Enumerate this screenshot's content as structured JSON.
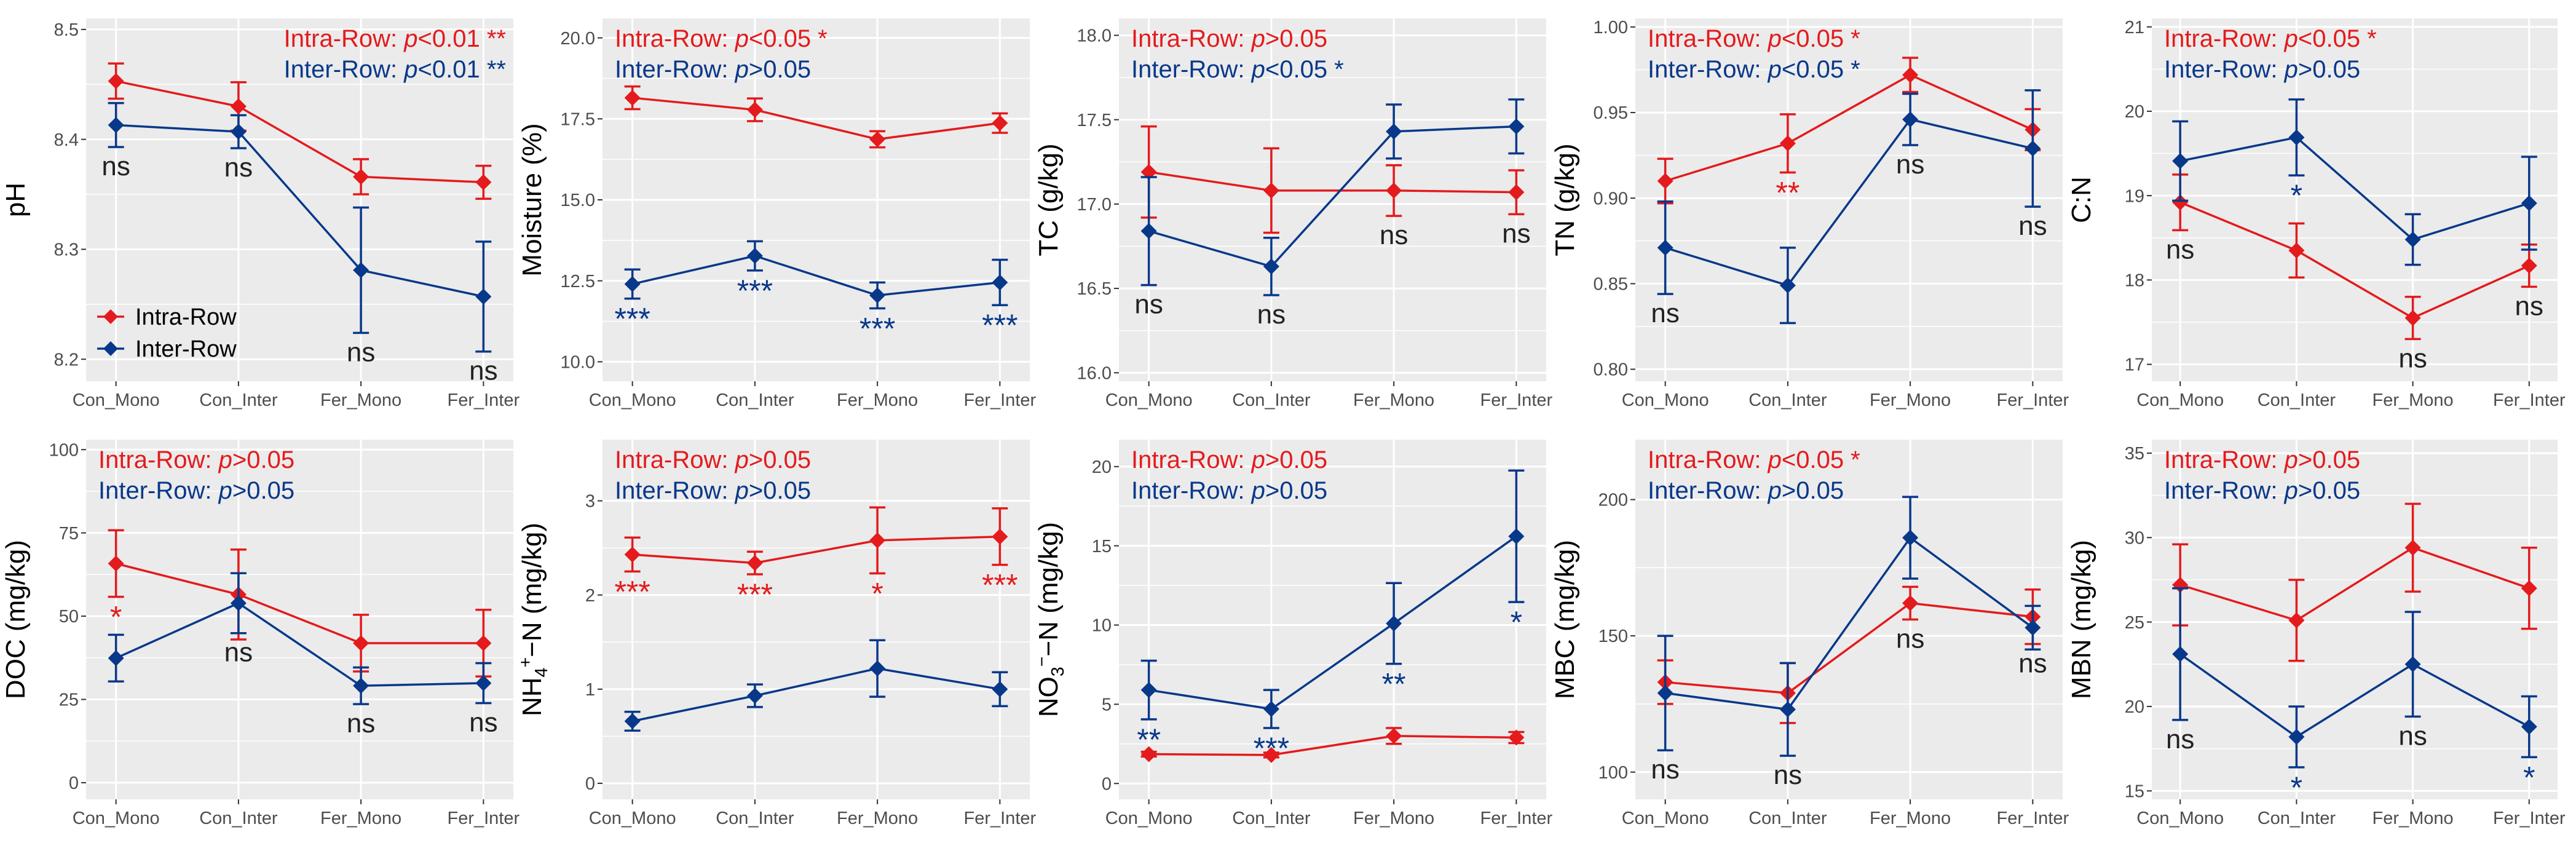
{
  "colors": {
    "intra": "#e41a1c",
    "inter": "#08388a",
    "panel_bg": "#ebebeb",
    "grid": "#ffffff",
    "axis_text": "#4d4d4d",
    "title_text": "#000000"
  },
  "legend": {
    "intra_label": "Intra-Row",
    "inter_label": "Inter-Row"
  },
  "chart_data": [
    {
      "id": "ph",
      "type": "line",
      "ylabel": "pH",
      "ylabel_html": false,
      "categories": [
        "Con_Mono",
        "Con_Inter",
        "Fer_Mono",
        "Fer_Inter"
      ],
      "ylim": [
        8.18,
        8.51
      ],
      "yticks": [
        8.2,
        8.3,
        8.4,
        8.5
      ],
      "ytick_labels": [
        "8.2",
        "8.3",
        "8.4",
        "8.5"
      ],
      "stats_align": "right",
      "stats": [
        {
          "series": "intra",
          "prefix": "Intra-Row: ",
          "p": "p",
          "suffix": "<0.01 **"
        },
        {
          "series": "inter",
          "prefix": "Inter-Row: ",
          "p": "p",
          "suffix": "<0.01 **"
        }
      ],
      "legend_shown": true,
      "series": [
        {
          "name": "Intra-Row",
          "values": [
            8.453,
            8.43,
            8.366,
            8.361
          ],
          "errors": [
            0.016,
            0.022,
            0.016,
            0.015
          ],
          "marks": [
            "",
            "",
            "",
            ""
          ]
        },
        {
          "name": "Inter-Row",
          "values": [
            8.413,
            8.407,
            8.281,
            8.257
          ],
          "errors": [
            0.02,
            0.015,
            0.057,
            0.05
          ],
          "marks": [
            "ns",
            "ns",
            "ns",
            "ns"
          ]
        }
      ]
    },
    {
      "id": "moisture",
      "type": "line",
      "ylabel": "Moisture (%)",
      "categories": [
        "Con_Mono",
        "Con_Inter",
        "Fer_Mono",
        "Fer_Inter"
      ],
      "ylim": [
        9.4,
        20.6
      ],
      "yticks": [
        10,
        12.5,
        15,
        17.5,
        20
      ],
      "ytick_labels": [
        "10.0",
        "12.5",
        "15.0",
        "17.5",
        "20.0"
      ],
      "stats_align": "left",
      "stats": [
        {
          "series": "intra",
          "prefix": "Intra-Row: ",
          "p": "p",
          "suffix": "<0.05 *"
        },
        {
          "series": "inter",
          "prefix": "Inter-Row: ",
          "p": "p",
          "suffix": ">0.05"
        }
      ],
      "series": [
        {
          "name": "Intra-Row",
          "values": [
            18.15,
            17.78,
            16.87,
            17.37
          ],
          "errors": [
            0.35,
            0.35,
            0.25,
            0.3
          ],
          "marks": [
            "",
            "",
            "",
            ""
          ]
        },
        {
          "name": "Inter-Row",
          "values": [
            12.4,
            13.27,
            12.05,
            12.45
          ],
          "errors": [
            0.45,
            0.45,
            0.4,
            0.7
          ],
          "marks": [
            "***",
            "***",
            "***",
            "***"
          ]
        }
      ]
    },
    {
      "id": "tc",
      "type": "line",
      "ylabel": "TC (g/kg)",
      "categories": [
        "Con_Mono",
        "Con_Inter",
        "Fer_Mono",
        "Fer_Inter"
      ],
      "ylim": [
        15.95,
        18.1
      ],
      "yticks": [
        16,
        16.5,
        17,
        17.5,
        18
      ],
      "ytick_labels": [
        "16.0",
        "16.5",
        "17.0",
        "17.5",
        "18.0"
      ],
      "stats_align": "left",
      "stats": [
        {
          "series": "intra",
          "prefix": "Intra-Row: ",
          "p": "p",
          "suffix": ">0.05"
        },
        {
          "series": "inter",
          "prefix": "Inter-Row: ",
          "p": "p",
          "suffix": "<0.05 *"
        }
      ],
      "series": [
        {
          "name": "Intra-Row",
          "values": [
            17.19,
            17.08,
            17.08,
            17.07
          ],
          "errors": [
            0.27,
            0.25,
            0.15,
            0.13
          ],
          "marks": [
            "",
            "",
            "ns",
            "ns"
          ]
        },
        {
          "name": "Inter-Row",
          "values": [
            16.84,
            16.63,
            17.43,
            17.46
          ],
          "errors": [
            0.32,
            0.17,
            0.16,
            0.16
          ],
          "marks": [
            "ns",
            "ns",
            "",
            ""
          ]
        }
      ]
    },
    {
      "id": "tn",
      "type": "line",
      "ylabel": "TN (g/kg)",
      "categories": [
        "Con_Mono",
        "Con_Inter",
        "Fer_Mono",
        "Fer_Inter"
      ],
      "ylim": [
        0.793,
        1.005
      ],
      "yticks": [
        0.8,
        0.85,
        0.9,
        0.95,
        1.0
      ],
      "ytick_labels": [
        "0.80",
        "0.85",
        "0.90",
        "0.95",
        "1.00"
      ],
      "stats_align": "left",
      "stats": [
        {
          "series": "intra",
          "prefix": "Intra-Row: ",
          "p": "p",
          "suffix": "<0.05 *"
        },
        {
          "series": "inter",
          "prefix": "Inter-Row: ",
          "p": "p",
          "suffix": "<0.05 *"
        }
      ],
      "series": [
        {
          "name": "Intra-Row",
          "values": [
            0.91,
            0.932,
            0.972,
            0.94
          ],
          "errors": [
            0.013,
            0.017,
            0.01,
            0.012
          ],
          "marks": [
            "",
            "**",
            "",
            ""
          ]
        },
        {
          "name": "Inter-Row",
          "values": [
            0.871,
            0.849,
            0.946,
            0.929
          ],
          "errors": [
            0.027,
            0.022,
            0.015,
            0.034
          ],
          "marks": [
            "ns",
            "",
            "ns",
            "ns"
          ]
        }
      ]
    },
    {
      "id": "cn",
      "type": "line",
      "ylabel": "C:N",
      "categories": [
        "Con_Mono",
        "Con_Inter",
        "Fer_Mono",
        "Fer_Inter"
      ],
      "ylim": [
        16.8,
        21.1
      ],
      "yticks": [
        17,
        18,
        19,
        20,
        21
      ],
      "ytick_labels": [
        "17",
        "18",
        "19",
        "20",
        "21"
      ],
      "stats_align": "left",
      "stats": [
        {
          "series": "intra",
          "prefix": "Intra-Row: ",
          "p": "p",
          "suffix": "<0.05 *"
        },
        {
          "series": "inter",
          "prefix": "Inter-Row: ",
          "p": "p",
          "suffix": ">0.05"
        }
      ],
      "series": [
        {
          "name": "Intra-Row",
          "values": [
            18.92,
            18.35,
            17.55,
            18.17
          ],
          "errors": [
            0.33,
            0.32,
            0.25,
            0.25
          ],
          "marks": [
            "ns",
            "",
            "ns",
            "ns"
          ]
        },
        {
          "name": "Inter-Row",
          "values": [
            19.41,
            19.69,
            18.48,
            18.91
          ],
          "errors": [
            0.47,
            0.45,
            0.3,
            0.55
          ],
          "marks": [
            "",
            "*",
            "",
            ""
          ]
        }
      ]
    },
    {
      "id": "doc",
      "type": "line",
      "ylabel": "DOC (mg/kg)",
      "categories": [
        "Con_Mono",
        "Con_Inter",
        "Fer_Mono",
        "Fer_Inter"
      ],
      "ylim": [
        -5,
        103
      ],
      "yticks": [
        0,
        25,
        50,
        75,
        100
      ],
      "ytick_labels": [
        "0",
        "25",
        "50",
        "75",
        "100"
      ],
      "stats_align": "left",
      "stats": [
        {
          "series": "intra",
          "prefix": "Intra-Row: ",
          "p": "p",
          "suffix": ">0.05"
        },
        {
          "series": "inter",
          "prefix": "Inter-Row: ",
          "p": "p",
          "suffix": ">0.05"
        }
      ],
      "series": [
        {
          "name": "Intra-Row",
          "values": [
            65.8,
            56.5,
            41.9,
            41.9
          ],
          "errors": [
            10.0,
            13.5,
            8.5,
            10.0
          ],
          "marks": [
            "*",
            "",
            "",
            ""
          ]
        },
        {
          "name": "Inter-Row",
          "values": [
            37.4,
            53.9,
            29.1,
            29.9
          ],
          "errors": [
            7.0,
            9.0,
            5.5,
            6.0
          ],
          "marks": [
            "",
            "ns",
            "ns",
            "ns"
          ]
        }
      ]
    },
    {
      "id": "nh4",
      "type": "line",
      "ylabel": "NH4+-N (mg/kg)",
      "ylabel_parts": [
        {
          "t": "NH",
          "k": "n"
        },
        {
          "t": "4",
          "k": "sub"
        },
        {
          "t": "+",
          "k": "sup"
        },
        {
          "t": "−N (mg/kg)",
          "k": "n"
        }
      ],
      "categories": [
        "Con_Mono",
        "Con_Inter",
        "Fer_Mono",
        "Fer_Inter"
      ],
      "ylim": [
        -0.17,
        3.65
      ],
      "yticks": [
        0,
        1,
        2,
        3
      ],
      "ytick_labels": [
        "0",
        "1",
        "2",
        "3"
      ],
      "stats_align": "left",
      "stats": [
        {
          "series": "intra",
          "prefix": "Intra-Row: ",
          "p": "p",
          "suffix": ">0.05"
        },
        {
          "series": "inter",
          "prefix": "Inter-Row: ",
          "p": "p",
          "suffix": ">0.05"
        }
      ],
      "series": [
        {
          "name": "Intra-Row",
          "values": [
            2.43,
            2.34,
            2.58,
            2.62
          ],
          "errors": [
            0.18,
            0.12,
            0.35,
            0.3
          ],
          "marks": [
            "***",
            "***",
            "*",
            "***"
          ]
        },
        {
          "name": "Inter-Row",
          "values": [
            0.66,
            0.93,
            1.22,
            1.0
          ],
          "errors": [
            0.1,
            0.12,
            0.3,
            0.18
          ],
          "marks": [
            "",
            "",
            "",
            ""
          ]
        }
      ]
    },
    {
      "id": "no3",
      "type": "line",
      "ylabel": "NO3−-N (mg/kg)",
      "ylabel_parts": [
        {
          "t": "NO",
          "k": "n"
        },
        {
          "t": "3",
          "k": "sub"
        },
        {
          "t": "−",
          "k": "sup"
        },
        {
          "t": "−N (mg/kg)",
          "k": "n"
        }
      ],
      "categories": [
        "Con_Mono",
        "Con_Inter",
        "Fer_Mono",
        "Fer_Inter"
      ],
      "ylim": [
        -1.0,
        21.7
      ],
      "yticks": [
        0,
        5,
        10,
        15,
        20
      ],
      "ytick_labels": [
        "0",
        "5",
        "10",
        "15",
        "20"
      ],
      "stats_align": "left",
      "stats": [
        {
          "series": "intra",
          "prefix": "Intra-Row: ",
          "p": "p",
          "suffix": ">0.05"
        },
        {
          "series": "inter",
          "prefix": "Inter-Row: ",
          "p": "p",
          "suffix": ">0.05"
        }
      ],
      "series": [
        {
          "name": "Intra-Row",
          "values": [
            1.85,
            1.8,
            3.0,
            2.9
          ],
          "errors": [
            0.15,
            0.15,
            0.5,
            0.35
          ],
          "marks": [
            "",
            "",
            "",
            ""
          ]
        },
        {
          "name": "Inter-Row",
          "values": [
            5.9,
            4.7,
            10.1,
            15.6
          ],
          "errors": [
            1.85,
            1.2,
            2.55,
            4.15
          ],
          "marks": [
            "**",
            "***",
            "**",
            "*"
          ]
        }
      ]
    },
    {
      "id": "mbc",
      "type": "line",
      "ylabel": "MBC (mg/kg)",
      "categories": [
        "Con_Mono",
        "Con_Inter",
        "Fer_Mono",
        "Fer_Inter"
      ],
      "ylim": [
        90,
        222
      ],
      "yticks": [
        100,
        150,
        200
      ],
      "ytick_labels": [
        "100",
        "150",
        "200"
      ],
      "stats_align": "left",
      "stats": [
        {
          "series": "intra",
          "prefix": "Intra-Row: ",
          "p": "p",
          "suffix": "<0.05 *"
        },
        {
          "series": "inter",
          "prefix": "Inter-Row: ",
          "p": "p",
          "suffix": ">0.05"
        }
      ],
      "series": [
        {
          "name": "Intra-Row",
          "values": [
            133,
            129,
            162,
            157
          ],
          "errors": [
            8,
            11,
            6,
            10
          ],
          "marks": [
            "",
            "",
            "ns",
            "ns"
          ]
        },
        {
          "name": "Inter-Row",
          "values": [
            129,
            123,
            186,
            153
          ],
          "errors": [
            21,
            17,
            15,
            8
          ],
          "marks": [
            "ns",
            "ns",
            "",
            ""
          ]
        }
      ]
    },
    {
      "id": "mbn",
      "type": "line",
      "ylabel": "MBN (mg/kg)",
      "categories": [
        "Con_Mono",
        "Con_Inter",
        "Fer_Mono",
        "Fer_Inter"
      ],
      "ylim": [
        14.5,
        35.8
      ],
      "yticks": [
        15,
        20,
        25,
        30,
        35
      ],
      "ytick_labels": [
        "15",
        "20",
        "25",
        "30",
        "35"
      ],
      "stats_align": "left",
      "stats": [
        {
          "series": "intra",
          "prefix": "Intra-Row: ",
          "p": "p",
          "suffix": ">0.05"
        },
        {
          "series": "inter",
          "prefix": "Inter-Row: ",
          "p": "p",
          "suffix": ">0.05"
        }
      ],
      "series": [
        {
          "name": "Intra-Row",
          "values": [
            27.2,
            25.1,
            29.4,
            27.0
          ],
          "errors": [
            2.4,
            2.4,
            2.6,
            2.4
          ],
          "marks": [
            "",
            "",
            "",
            ""
          ]
        },
        {
          "name": "Inter-Row",
          "values": [
            23.1,
            18.2,
            22.5,
            18.8
          ],
          "errors": [
            3.9,
            1.8,
            3.1,
            1.8
          ],
          "marks": [
            "ns",
            "*",
            "ns",
            "*"
          ]
        }
      ]
    }
  ]
}
